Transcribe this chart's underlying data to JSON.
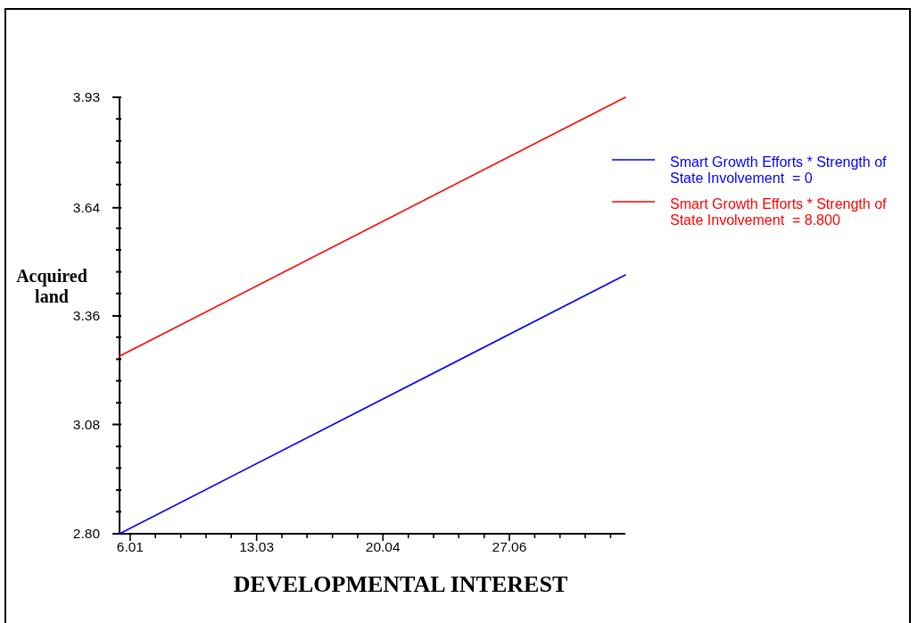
{
  "chart_data": {
    "type": "line",
    "xlabel": "DEVELOPMENTAL INTEREST",
    "ylabel": "Acquired land",
    "legend": "right",
    "x": [
      5.42,
      33.5
    ],
    "series": [
      {
        "name": "Smart Growth Efforts * Strength of State Involvement  = 0",
        "color": "#0000ff",
        "values": [
          2.8,
          3.47
        ]
      },
      {
        "name": "Smart Growth Efforts * Strength of State Involvement  = 8.800",
        "color": "#ff0000",
        "values": [
          3.26,
          3.93
        ]
      }
    ],
    "xlim": [
      5.42,
      33.5
    ],
    "ylim": [
      2.8,
      3.93
    ],
    "xticks": [
      6.01,
      {
        "value": 7.41,
        "label": null
      },
      {
        "value": 8.82,
        "label": null
      },
      {
        "value": 10.22,
        "label": null
      },
      {
        "value": 11.62,
        "label": null
      },
      13.03,
      {
        "value": 14.43,
        "label": null
      },
      {
        "value": 15.83,
        "label": null
      },
      {
        "value": 17.24,
        "label": null
      },
      {
        "value": 18.64,
        "label": null
      },
      20.04,
      {
        "value": 21.45,
        "label": null
      },
      {
        "value": 22.85,
        "label": null
      },
      {
        "value": 24.25,
        "label": null
      },
      {
        "value": 25.66,
        "label": null
      },
      27.06,
      {
        "value": 28.47,
        "label": null
      },
      {
        "value": 29.87,
        "label": null
      },
      {
        "value": 31.27,
        "label": null
      },
      {
        "value": 32.68,
        "label": null
      }
    ],
    "yticks": [
      {
        "value": 2.8,
        "label": "2.80"
      },
      {
        "value": 2.857,
        "label": null
      },
      {
        "value": 2.913,
        "label": null
      },
      {
        "value": 2.97,
        "label": null
      },
      {
        "value": 3.026,
        "label": null
      },
      {
        "value": 3.083,
        "label": "3.08"
      },
      {
        "value": 3.139,
        "label": null
      },
      {
        "value": 3.196,
        "label": null
      },
      {
        "value": 3.252,
        "label": null
      },
      {
        "value": 3.309,
        "label": null
      },
      {
        "value": 3.364,
        "label": "3.36"
      },
      {
        "value": 3.422,
        "label": null
      },
      {
        "value": 3.478,
        "label": null
      },
      {
        "value": 3.535,
        "label": null
      },
      {
        "value": 3.591,
        "label": null
      },
      {
        "value": 3.644,
        "label": "3.64"
      },
      {
        "value": 3.704,
        "label": null
      },
      {
        "value": 3.761,
        "label": null
      },
      {
        "value": 3.817,
        "label": null
      },
      {
        "value": 3.874,
        "label": null
      },
      3.93
    ]
  }
}
